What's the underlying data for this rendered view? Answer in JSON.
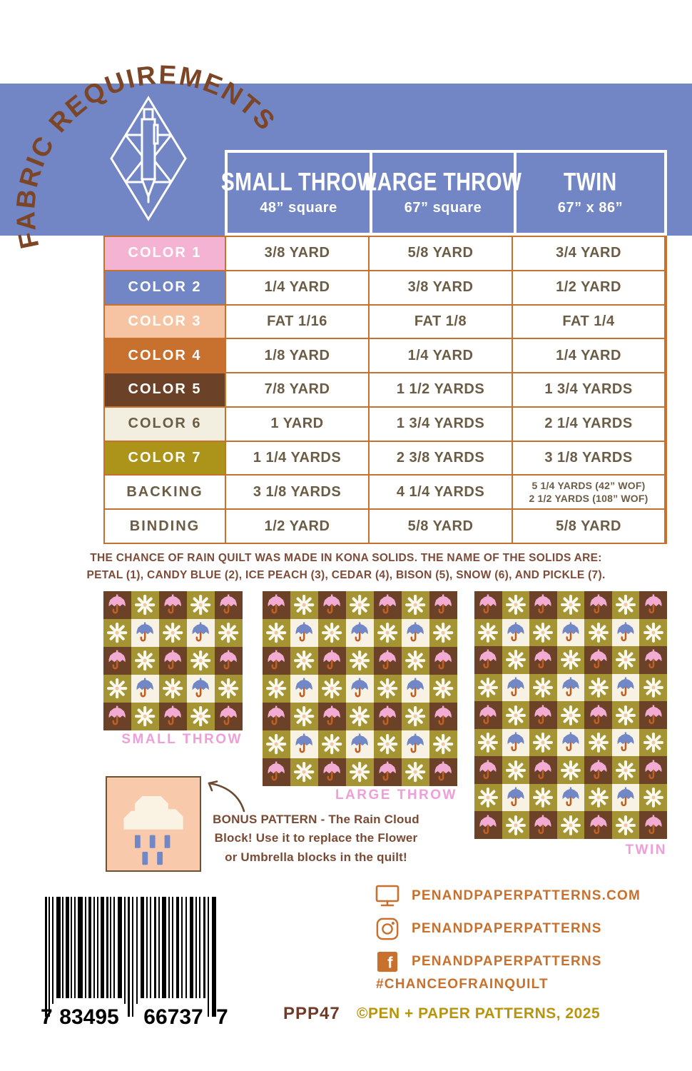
{
  "header": {
    "arc_title": "FABRIC REQUIREMENTS",
    "logo": "pen-and-envelope-diamond"
  },
  "colors": {
    "band_blue": "#7286c5",
    "grid_orange": "#c8702d",
    "value_text": "#6b5c45",
    "note_brown": "#7d4b38",
    "arc_brown": "#7b4526",
    "quilt_label_pink": "#ee9ed8",
    "bonus_bg": "#f8c9ab",
    "footer_orange": "#c8702d",
    "copyright_gold": "#b8940f",
    "sku_brown": "#6f3a28",
    "quilt": {
      "brown": "#6b4228",
      "olive": "#a59433",
      "cream": "#f7f2e3",
      "umbrella_pink": "#f2abd3",
      "umbrella_blue": "#7287c6",
      "handle_orange": "#bf5f24",
      "flower_petal": "#fcf9ee",
      "flower_center": "#f2c3a3",
      "cloud_cream": "#faf3e3",
      "rain_blue": "#7287c6"
    }
  },
  "table": {
    "columns": [
      {
        "label": "SMALL THROW",
        "sub": "48” square"
      },
      {
        "label": "LARGE THROW",
        "sub": "67” square"
      },
      {
        "label": "TWIN",
        "sub": "67” x 86”"
      }
    ],
    "rows": [
      {
        "label": "COLOR 1",
        "swatch": "#f5b3d3",
        "label_color": "#ffffff",
        "values": [
          "3/8 YARD",
          "5/8 YARD",
          "3/4 YARD"
        ]
      },
      {
        "label": "COLOR 2",
        "swatch": "#7286c5",
        "label_color": "#ffffff",
        "values": [
          "1/4 YARD",
          "3/8 YARD",
          "1/2 YARD"
        ]
      },
      {
        "label": "COLOR 3",
        "swatch": "#f7c4a3",
        "label_color": "#ffffff",
        "values": [
          "FAT 1/16",
          "FAT 1/8",
          "FAT 1/4"
        ]
      },
      {
        "label": "COLOR 4",
        "swatch": "#c8702d",
        "label_color": "#ffffff",
        "values": [
          "1/8 YARD",
          "1/4 YARD",
          "1/4 YARD"
        ]
      },
      {
        "label": "COLOR 5",
        "swatch": "#6b4228",
        "label_color": "#ffffff",
        "values": [
          "7/8 YARD",
          "1 1/2 YARDS",
          "1 3/4 YARDS"
        ]
      },
      {
        "label": "COLOR 6",
        "swatch": "#f2efe0",
        "label_color": "#6b5c45",
        "values": [
          "1 YARD",
          "1 3/4 YARDS",
          "2 1/4 YARDS"
        ]
      },
      {
        "label": "COLOR 7",
        "swatch": "#ac9319",
        "label_color": "#ffffff",
        "values": [
          "1 1/4 YARDS",
          "2 3/8 YARDS",
          "3 1/8 YARDS"
        ]
      },
      {
        "label": "BACKING",
        "swatch": "#ffffff",
        "label_color": "#6b5c45",
        "values": [
          "3 1/8 YARDS",
          "4 1/4 YARDS",
          [
            "5 1/4 YARDS (42” WOF)",
            "2 1/2 YARDS (108” WOF)"
          ]
        ]
      },
      {
        "label": "BINDING",
        "swatch": "#ffffff",
        "label_color": "#6b5c45",
        "values": [
          "1/2 YARD",
          "5/8 YARD",
          "5/8 YARD"
        ]
      }
    ]
  },
  "note": {
    "line1": "THE CHANCE OF RAIN QUILT WAS MADE IN KONA SOLIDS. THE NAME OF THE SOLIDS ARE:",
    "line2": "PETAL (1), CANDY BLUE (2), ICE PEACH (3), CEDAR (4), BISON (5), SNOW (6), AND PICKLE (7)."
  },
  "quilts": [
    {
      "id": "quilt-small",
      "label": "SMALL THROW",
      "rows": 5,
      "cols": 5
    },
    {
      "id": "quilt-large",
      "label": "LARGE THROW",
      "rows": 7,
      "cols": 7
    },
    {
      "id": "quilt-twin",
      "label": "TWIN",
      "rows": 9,
      "cols": 7
    }
  ],
  "bonus": {
    "line1": "BONUS PATTERN - The Rain Cloud",
    "line2": "Block! Use it to replace the Flower",
    "line3": "or Umbrella blocks in the quilt!"
  },
  "footer": {
    "links": [
      {
        "icon": "monitor",
        "label": "PENANDPAPERPATTERNS.COM"
      },
      {
        "icon": "instagram",
        "label": "PENANDPAPERPATTERNS"
      },
      {
        "icon": "facebook",
        "label": "PENANDPAPERPATTERNS"
      }
    ],
    "hashtag": "#CHANCEOFRAINQUILT",
    "sku": "PPP47",
    "copyright": "©PEN + PAPER PATTERNS, 2025",
    "barcode_digits": [
      "7",
      "83495",
      "66737",
      "7"
    ]
  }
}
